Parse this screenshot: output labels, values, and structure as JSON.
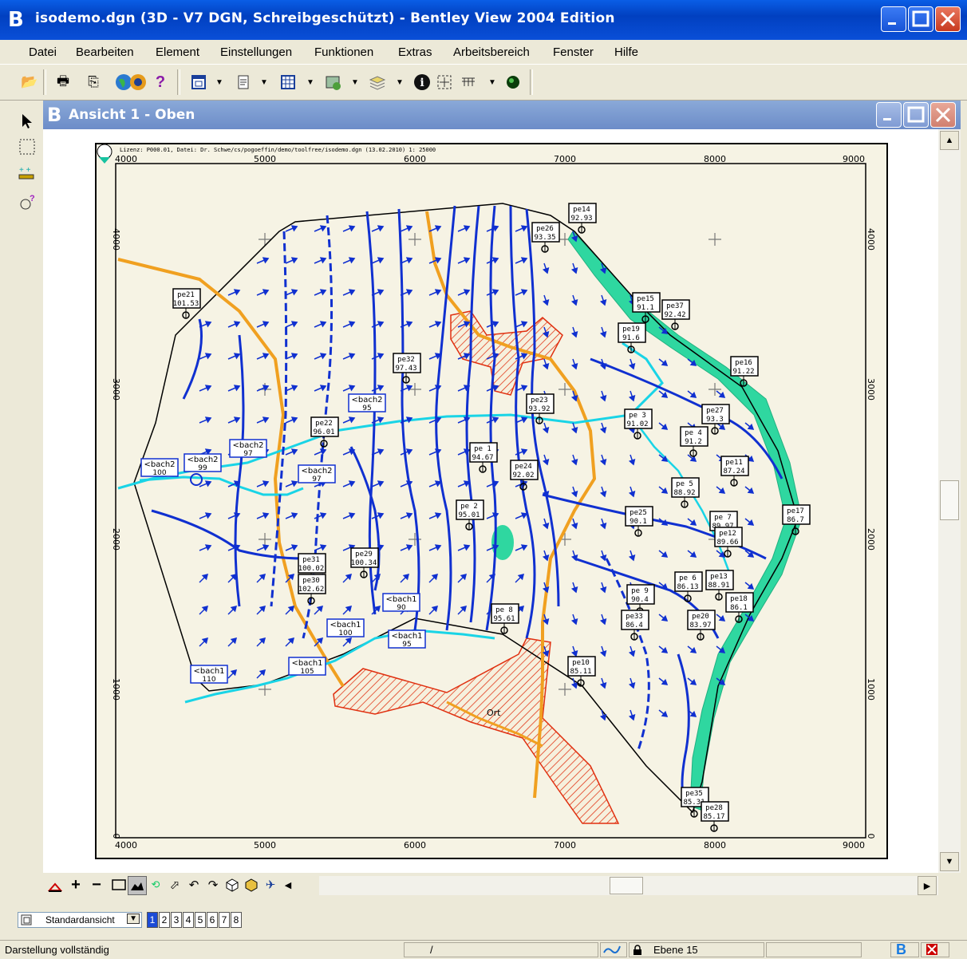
{
  "app": {
    "title": "isodemo.dgn (3D - V7 DGN, Schreibgeschützt) - Bentley View 2004 Edition"
  },
  "menu": [
    "Datei",
    "Bearbeiten",
    "Element",
    "Einstellungen",
    "Funktionen",
    "Extras",
    "Arbeitsbereich",
    "Fenster",
    "Hilfe"
  ],
  "view": {
    "title": "Ansicht 1 - Oben",
    "header_text": "Lizenz: P000.01, Datei: Dr. Schwe/cs/pogoeffin/demo/toolfree/isodemo.dgn (13.02.2010) 1: 25000",
    "x_ticks": [
      "4000",
      "5000",
      "6000",
      "7000",
      "8000",
      "9000"
    ],
    "y_ticks": [
      "4000",
      "3000",
      "2000",
      "1000",
      "0"
    ],
    "area_label": "Ort",
    "wells": [
      {
        "name": "pe14",
        "value": "92.93"
      },
      {
        "name": "pe26",
        "value": "93.35"
      },
      {
        "name": "pe21",
        "value": "101.53"
      },
      {
        "name": "pe15",
        "value": "91.1"
      },
      {
        "name": "pe37",
        "value": "92.42"
      },
      {
        "name": "pe19",
        "value": "91.6"
      },
      {
        "name": "pe32",
        "value": "97.43"
      },
      {
        "name": "pe16",
        "value": "91.22"
      },
      {
        "name": "pe23",
        "value": "93.92"
      },
      {
        "name": "pe27",
        "value": "93.3"
      },
      {
        "name": "pe 3",
        "value": "91.02"
      },
      {
        "name": "pe22",
        "value": "96.01"
      },
      {
        "name": "pe 4",
        "value": "91.2"
      },
      {
        "name": "pe 1",
        "value": "94.67"
      },
      {
        "name": "pe11",
        "value": "87.24"
      },
      {
        "name": "pe24",
        "value": "92.02"
      },
      {
        "name": "pe 5",
        "value": "88.92"
      },
      {
        "name": "pe 2",
        "value": "95.01"
      },
      {
        "name": "pe25",
        "value": "90.1"
      },
      {
        "name": "pe 7",
        "value": "89.97"
      },
      {
        "name": "pe17",
        "value": "86.7"
      },
      {
        "name": "pe12",
        "value": "89.66"
      },
      {
        "name": "pe31",
        "value": "100.02"
      },
      {
        "name": "pe29",
        "value": "100.34"
      },
      {
        "name": "pe30",
        "value": "102.62"
      },
      {
        "name": "pe 6",
        "value": "86.13"
      },
      {
        "name": "pe13",
        "value": "88.91"
      },
      {
        "name": "pe 9",
        "value": "90.4"
      },
      {
        "name": "pe18",
        "value": "86.1"
      },
      {
        "name": "pe 8",
        "value": "95.61"
      },
      {
        "name": "pe33",
        "value": "86.4"
      },
      {
        "name": "pe20",
        "value": "83.97"
      },
      {
        "name": "pe10",
        "value": "85.11"
      },
      {
        "name": "pe35",
        "value": "85.31"
      },
      {
        "name": "pe28",
        "value": "85.17"
      }
    ],
    "streams": [
      {
        "name": "bach2",
        "value": "100"
      },
      {
        "name": "bach2",
        "value": "99"
      },
      {
        "name": "bach2",
        "value": "97"
      },
      {
        "name": "bach2",
        "value": "97"
      },
      {
        "name": "bach2",
        "value": "95"
      },
      {
        "name": "bach1",
        "value": "90"
      },
      {
        "name": "bach1",
        "value": "100"
      },
      {
        "name": "bach1",
        "value": "95"
      },
      {
        "name": "bach1",
        "value": "105"
      },
      {
        "name": "bach1",
        "value": "110"
      }
    ]
  },
  "bottom": {
    "view_selector": "Standardansicht",
    "view_numbers": [
      "1",
      "2",
      "3",
      "4",
      "5",
      "6",
      "7",
      "8"
    ],
    "active_view": "1"
  },
  "status": {
    "message": "Darstellung vollständig",
    "coord": "/",
    "level": "Ebene 15"
  },
  "colors": {
    "titlebar": "#0a4fd8",
    "map_background": "#f6f3e4",
    "isoline": "#1030d0",
    "stream": "#19d4e6",
    "road": "#f0a020",
    "river_band": "#2fd7a0",
    "hatched_area": "#e03010"
  }
}
